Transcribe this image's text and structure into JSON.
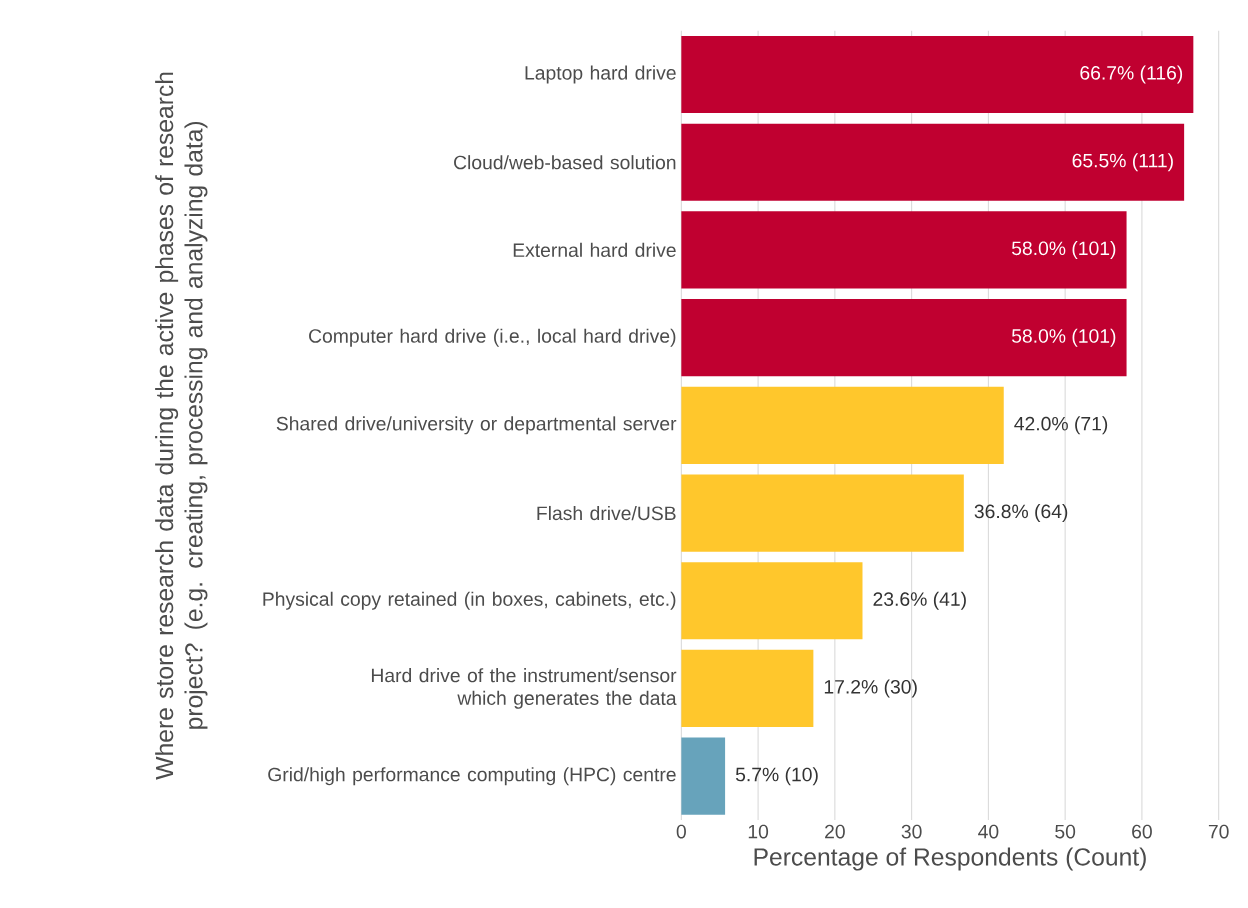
{
  "chart_data": {
    "type": "bar",
    "orientation": "horizontal",
    "xlabel": "Percentage of Respondents (Count)",
    "ylabel": "Where store research data during the active phases of research project? (e.g. creating, processing and analyzing data)",
    "categories": [
      "Laptop hard drive",
      "Cloud/web-based solution",
      "External hard drive",
      "Computer hard drive (i.e., local hard drive)",
      "Shared drive/university or departmental server",
      "Flash drive/USB",
      "Physical copy retained (in boxes, cabinets, etc.)",
      "Hard drive of the instrument/sensor which generates the data",
      "Grid/high performance computing (HPC) centre"
    ],
    "values": [
      66.7,
      65.5,
      58.0,
      58.0,
      42.0,
      36.8,
      23.6,
      17.2,
      5.7
    ],
    "colors": [
      "#c00030",
      "#c00030",
      "#c00030",
      "#c00030",
      "#ffc72c",
      "#ffc72c",
      "#ffc72c",
      "#ffc72c",
      "#67a3bb"
    ],
    "value_labels": [
      "66.7% (116)",
      "65.5% (111)",
      "58.0% (101)",
      "58.0% (101)",
      "42.0% (71)",
      "36.8% (64)",
      "23.6% (41)",
      "17.2% (30)",
      "5.7% (10)"
    ],
    "xlim": [
      0,
      70
    ],
    "xticks": [
      0,
      10,
      20,
      30,
      40,
      50,
      60,
      70
    ],
    "grid": "x"
  }
}
